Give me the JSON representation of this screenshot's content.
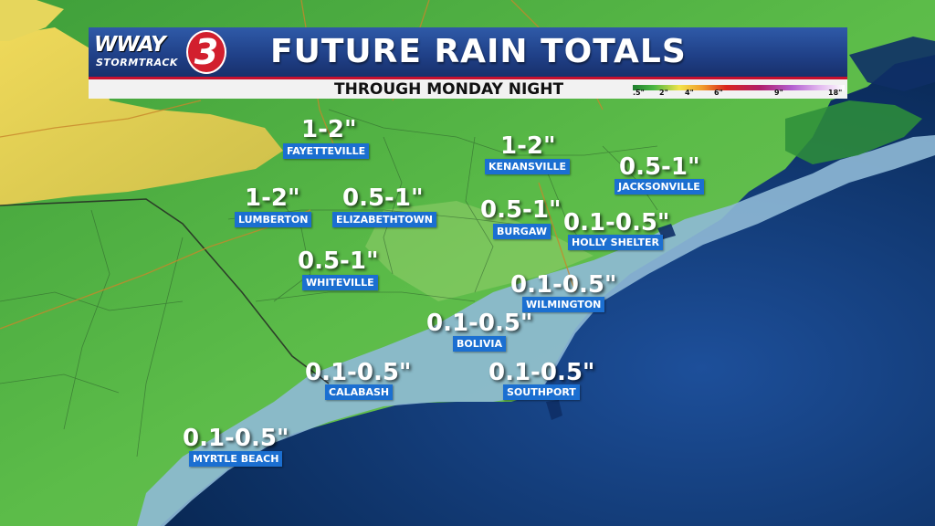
{
  "header": {
    "title": "FUTURE RAIN TOTALS",
    "subtitle": "THROUGH MONDAY NIGHT",
    "logo_text": "WWAY",
    "logo_sub": "STORMTRACK",
    "logo_number": "3"
  },
  "scale": {
    "ticks": [
      ".5\"",
      "2\"",
      "4\"",
      "6\"",
      "9\"",
      "18\""
    ],
    "colors": [
      "#1e7e2e",
      "#4cb844",
      "#f2e44a",
      "#f19b2c",
      "#d9251c",
      "#b01d6a",
      "#b35fd0",
      "#e2b7ef",
      "#ffffff"
    ]
  },
  "locations": [
    {
      "amount": "1-2\"",
      "city": "FAYETTEVILLE"
    },
    {
      "amount": "1-2\"",
      "city": "KENANSVILLE"
    },
    {
      "amount": "0.5-1\"",
      "city": "JACKSONVILLE"
    },
    {
      "amount": "1-2\"",
      "city": "LUMBERTON"
    },
    {
      "amount": "0.5-1\"",
      "city": "ELIZABETHTOWN"
    },
    {
      "amount": "0.5-1\"",
      "city": "BURGAW"
    },
    {
      "amount": "0.1-0.5\"",
      "city": "HOLLY SHELTER"
    },
    {
      "amount": "0.5-1\"",
      "city": "WHITEVILLE"
    },
    {
      "amount": "0.1-0.5\"",
      "city": "WILMINGTON"
    },
    {
      "amount": "0.1-0.5\"",
      "city": "BOLIVIA"
    },
    {
      "amount": "0.1-0.5\"",
      "city": "CALABASH"
    },
    {
      "amount": "0.1-0.5\"",
      "city": "SOUTHPORT"
    },
    {
      "amount": "0.1-0.5\"",
      "city": "MYRTLE BEACH"
    }
  ],
  "colors": {
    "ocean": "#0b3a7a",
    "land_green": "#55b947",
    "land_light": "#9ad06f",
    "coastal_blue": "#8fb9d6",
    "yellow": "#e3d45a",
    "header_blue": "#1f3f86",
    "accent_red": "#c8102e",
    "city_label": "#1b6fd1"
  }
}
